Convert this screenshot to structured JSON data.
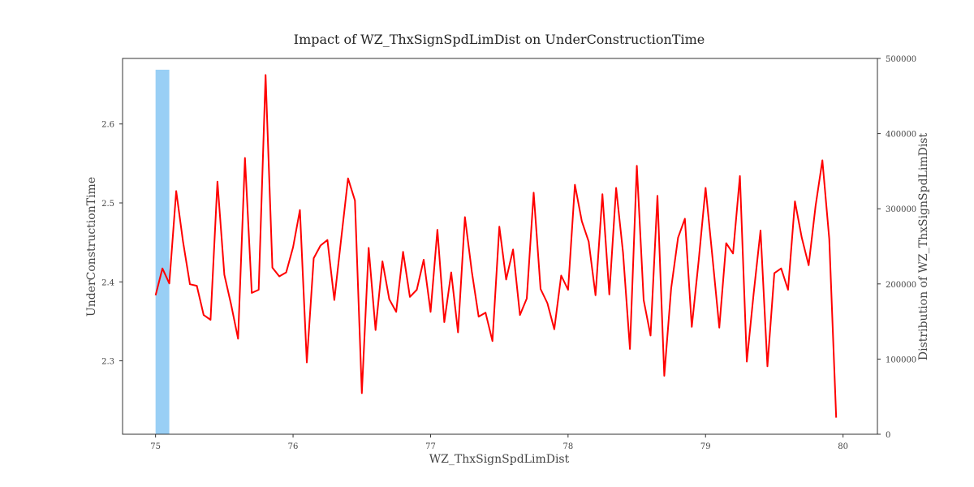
{
  "chart_data": {
    "type": "line",
    "title": "Impact of WZ_ThxSignSpdLimDist on UnderConstructionTime",
    "xlabel": "WZ_ThxSignSpdLimDist",
    "ylabel": "UnderConstructionTime",
    "y2label": "Distribution of WZ_ThxSignSpdLimDist",
    "xlim": [
      74.76,
      80.25
    ],
    "ylim": [
      2.207,
      2.683
    ],
    "y2lim": [
      0,
      500000
    ],
    "xticks": [
      75,
      76,
      77,
      78,
      79,
      80
    ],
    "yticks": [
      2.3,
      2.4,
      2.5,
      2.6
    ],
    "y2ticks": [
      0,
      100000,
      200000,
      300000,
      400000,
      500000
    ],
    "grid": false,
    "line_color": "#ff0000",
    "bar_color": "#99cff5",
    "histogram": [
      {
        "x0": 75.0,
        "x1": 75.1,
        "value": 485000
      }
    ],
    "series": [
      {
        "x": [
          75.0,
          75.05,
          75.1,
          75.15,
          75.2,
          75.25,
          75.3,
          75.35,
          75.4,
          75.45,
          75.5,
          75.55,
          75.6,
          75.65,
          75.7,
          75.75,
          75.8,
          75.85,
          75.9,
          75.95,
          76.0,
          76.05,
          76.1,
          76.15,
          76.2,
          76.25,
          76.3,
          76.35,
          76.4,
          76.45,
          76.5,
          76.55,
          76.6,
          76.65,
          76.7,
          76.75,
          76.8,
          76.85,
          76.9,
          76.95,
          77.0,
          77.05,
          77.1,
          77.15,
          77.2,
          77.25,
          77.3,
          77.35,
          77.4,
          77.45,
          77.5,
          77.55,
          77.6,
          77.65,
          77.7,
          77.75,
          77.8,
          77.85,
          77.9,
          77.95,
          78.0,
          78.05,
          78.1,
          78.15,
          78.2,
          78.25,
          78.3,
          78.35,
          78.4,
          78.45,
          78.5,
          78.55,
          78.6,
          78.65,
          78.7,
          78.75,
          78.8,
          78.85,
          78.9,
          78.95,
          79.0,
          79.05,
          79.1,
          79.15,
          79.2,
          79.25,
          79.3,
          79.35,
          79.4,
          79.45,
          79.5,
          79.55,
          79.6,
          79.65,
          79.7,
          79.75,
          79.8,
          79.85,
          79.9,
          79.95
        ],
        "values": [
          2.383,
          2.417,
          2.398,
          2.515,
          2.451,
          2.397,
          2.395,
          2.358,
          2.352,
          2.527,
          2.409,
          2.371,
          2.328,
          2.557,
          2.386,
          2.39,
          2.662,
          2.418,
          2.407,
          2.412,
          2.444,
          2.491,
          2.298,
          2.43,
          2.446,
          2.453,
          2.377,
          2.454,
          2.531,
          2.503,
          2.259,
          2.443,
          2.339,
          2.426,
          2.378,
          2.362,
          2.438,
          2.381,
          2.39,
          2.428,
          2.362,
          2.466,
          2.349,
          2.412,
          2.336,
          2.482,
          2.413,
          2.356,
          2.361,
          2.325,
          2.47,
          2.403,
          2.441,
          2.358,
          2.379,
          2.513,
          2.391,
          2.373,
          2.34,
          2.408,
          2.39,
          2.523,
          2.477,
          2.451,
          2.383,
          2.511,
          2.384,
          2.519,
          2.437,
          2.315,
          2.547,
          2.377,
          2.332,
          2.509,
          2.281,
          2.392,
          2.456,
          2.48,
          2.343,
          2.427,
          2.519,
          2.432,
          2.342,
          2.449,
          2.436,
          2.534,
          2.299,
          2.385,
          2.465,
          2.293,
          2.411,
          2.417,
          2.39,
          2.502,
          2.456,
          2.421,
          2.496,
          2.554,
          2.454,
          2.228
        ]
      }
    ]
  }
}
